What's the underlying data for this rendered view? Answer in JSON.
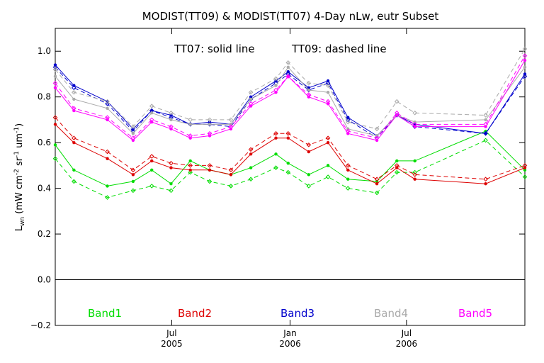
{
  "chart_data": {
    "type": "line",
    "title": "MODIST(TT09) & MODIST(TT07) 4-Day nLw, eutr Subset",
    "note_solid": "TT07: solid line",
    "note_dashed": "TT09: dashed line",
    "ylabel": "L_wn (mW cm^-2 sr^-1 um^-1)",
    "ylabel_parts": {
      "main": "L",
      "sub": "wn",
      "unit_a": " (mW cm",
      "sup_a": "-2",
      "unit_b": " sr",
      "sup_b": "-1",
      "unit_c": " um",
      "sup_c": "-1",
      "unit_d": ")"
    },
    "xlim": [
      "2005-01-01",
      "2007-01-01"
    ],
    "ylim": [
      -0.2,
      1.1
    ],
    "yticks": [
      {
        "value": -0.2,
        "label": "−0.2"
      },
      {
        "value": 0.0,
        "label": "0.0"
      },
      {
        "value": 0.2,
        "label": "0.2"
      },
      {
        "value": 0.4,
        "label": "0.4"
      },
      {
        "value": 0.6,
        "label": "0.6"
      },
      {
        "value": 0.8,
        "label": "0.8"
      },
      {
        "value": 1.0,
        "label": "1.0"
      }
    ],
    "xticks": [
      {
        "date": "2005-07-01",
        "label": "Jul",
        "year": "2005"
      },
      {
        "date": "2006-01-01",
        "label": "Jan",
        "year": "2006"
      },
      {
        "date": "2006-07-01",
        "label": "Jul",
        "year": "2006"
      }
    ],
    "reference_line": 0.0,
    "grid": false,
    "x": [
      "2005-01-01",
      "2005-01-30",
      "2005-03-23",
      "2005-05-02",
      "2005-05-31",
      "2005-06-30",
      "2005-07-30",
      "2005-08-29",
      "2005-10-01",
      "2005-11-01",
      "2005-12-10",
      "2005-12-29",
      "2006-01-30",
      "2006-03-01",
      "2006-04-01",
      "2006-05-16",
      "2006-06-16",
      "2006-07-14",
      "2006-11-01",
      "2007-01-01"
    ],
    "series": [
      {
        "band": "Band1",
        "color": "#00dd00",
        "style": "solid",
        "values": [
          0.59,
          0.48,
          0.41,
          0.43,
          0.48,
          0.42,
          0.52,
          0.48,
          0.46,
          0.49,
          0.55,
          0.51,
          0.46,
          0.5,
          0.44,
          0.43,
          0.52,
          0.52,
          0.65,
          0.48
        ]
      },
      {
        "band": "Band1",
        "color": "#00dd00",
        "style": "dashed",
        "values": [
          0.53,
          0.43,
          0.36,
          0.39,
          0.41,
          0.39,
          0.47,
          0.43,
          0.41,
          0.44,
          0.49,
          0.47,
          0.41,
          0.45,
          0.4,
          0.38,
          0.47,
          0.47,
          0.61,
          0.45
        ]
      },
      {
        "band": "Band2",
        "color": "#dd0000",
        "style": "solid",
        "values": [
          0.68,
          0.6,
          0.53,
          0.46,
          0.52,
          0.49,
          0.48,
          0.48,
          0.46,
          0.55,
          0.62,
          0.62,
          0.56,
          0.6,
          0.48,
          0.42,
          0.49,
          0.44,
          0.42,
          0.49
        ]
      },
      {
        "band": "Band2",
        "color": "#dd0000",
        "style": "dashed",
        "values": [
          0.71,
          0.62,
          0.56,
          0.48,
          0.54,
          0.51,
          0.5,
          0.5,
          0.48,
          0.57,
          0.64,
          0.64,
          0.59,
          0.62,
          0.5,
          0.44,
          0.5,
          0.46,
          0.44,
          0.5
        ]
      },
      {
        "band": "Band3",
        "color": "#0000cc",
        "style": "solid",
        "values": [
          0.94,
          0.85,
          0.78,
          0.66,
          0.74,
          0.72,
          0.68,
          0.69,
          0.68,
          0.8,
          0.87,
          0.91,
          0.84,
          0.87,
          0.71,
          0.63,
          0.72,
          0.68,
          0.64,
          0.9
        ]
      },
      {
        "band": "Band3",
        "color": "#0000cc",
        "style": "dashed",
        "values": [
          0.93,
          0.84,
          0.77,
          0.65,
          0.74,
          0.71,
          0.68,
          0.68,
          0.67,
          0.79,
          0.86,
          0.9,
          0.83,
          0.86,
          0.7,
          0.62,
          0.72,
          0.67,
          0.64,
          0.89
        ]
      },
      {
        "band": "Band4",
        "color": "#aaaaaa",
        "style": "solid",
        "values": [
          0.89,
          0.79,
          0.75,
          0.64,
          0.73,
          0.7,
          0.68,
          0.68,
          0.68,
          0.79,
          0.85,
          0.93,
          0.83,
          0.82,
          0.66,
          0.63,
          0.72,
          0.69,
          0.7,
          0.93
        ]
      },
      {
        "band": "Band4",
        "color": "#aaaaaa",
        "style": "dashed",
        "values": [
          0.92,
          0.82,
          0.78,
          0.67,
          0.76,
          0.73,
          0.7,
          0.7,
          0.7,
          0.82,
          0.88,
          0.95,
          0.86,
          0.85,
          0.69,
          0.66,
          0.78,
          0.73,
          0.72,
          1.01
        ]
      },
      {
        "band": "Band5",
        "color": "#ff00ff",
        "style": "solid",
        "values": [
          0.84,
          0.74,
          0.7,
          0.61,
          0.69,
          0.66,
          0.62,
          0.63,
          0.66,
          0.76,
          0.82,
          0.89,
          0.8,
          0.77,
          0.64,
          0.61,
          0.72,
          0.67,
          0.67,
          0.96
        ]
      },
      {
        "band": "Band5",
        "color": "#ff00ff",
        "style": "dashed",
        "values": [
          0.86,
          0.75,
          0.71,
          0.62,
          0.7,
          0.67,
          0.63,
          0.64,
          0.67,
          0.77,
          0.83,
          0.89,
          0.81,
          0.78,
          0.65,
          0.62,
          0.73,
          0.68,
          0.68,
          0.98
        ]
      }
    ],
    "legend": [
      {
        "name": "Band1",
        "color": "#00dd00"
      },
      {
        "name": "Band2",
        "color": "#dd0000"
      },
      {
        "name": "Band3",
        "color": "#0000cc"
      },
      {
        "name": "Band4",
        "color": "#aaaaaa"
      },
      {
        "name": "Band5",
        "color": "#ff00ff"
      }
    ]
  }
}
